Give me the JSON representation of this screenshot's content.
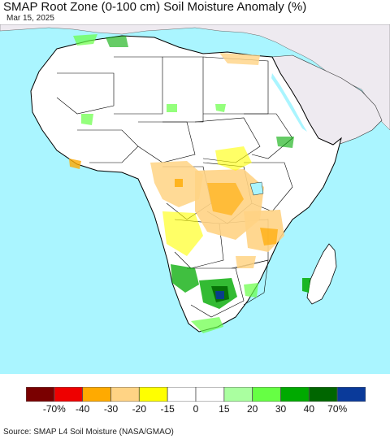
{
  "title": "SMAP Root Zone (0-100 cm) Soil Moisture Anomaly (%)",
  "date": "Mar 15, 2025",
  "source": "Source: SMAP L4 Soil Moisture (NASA/GMAO)",
  "colors": {
    "ocean": "#aaf5ff",
    "other_land": "#eeeaf0",
    "africa_land": "#ffffff",
    "border": "#000000"
  },
  "legend": {
    "bins": [
      {
        "color": "#7a0000"
      },
      {
        "color": "#ee0000"
      },
      {
        "color": "#ffaa00"
      },
      {
        "color": "#ffd384"
      },
      {
        "color": "#ffff00"
      },
      {
        "color": "#ffffff"
      },
      {
        "color": "#ffffff"
      },
      {
        "color": "#aaffa0"
      },
      {
        "color": "#66ff44"
      },
      {
        "color": "#00aa00"
      },
      {
        "color": "#006600"
      },
      {
        "color": "#0a3a9a"
      }
    ],
    "labels": [
      "-70%",
      "-40",
      "-30",
      "-20",
      "-15",
      "0",
      "15",
      "20",
      "30",
      "40",
      "70%"
    ]
  }
}
